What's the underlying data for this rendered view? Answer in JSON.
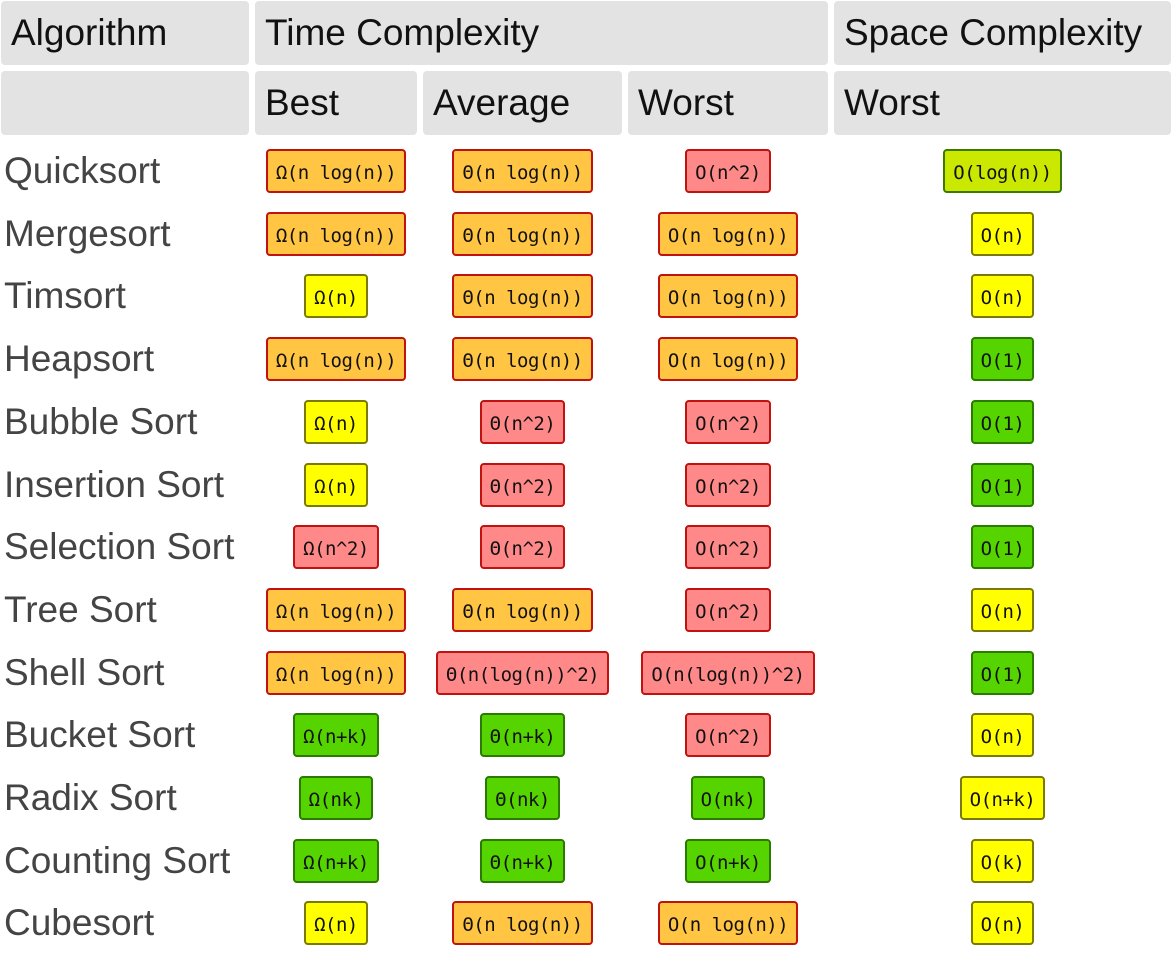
{
  "header": {
    "algorithm": "Algorithm",
    "time_complexity": "Time Complexity",
    "space_complexity": "Space Complexity",
    "best": "Best",
    "average": "Average",
    "worst": "Worst",
    "space_worst": "Worst"
  },
  "colors": {
    "orange": "#ffc543",
    "red": "#ff8989",
    "yellow": "#ffff00",
    "lime": "#cbe800",
    "green": "#55d400"
  },
  "rows": [
    {
      "name": "Quicksort",
      "best": {
        "v": "Ω(n log(n))",
        "c": "orange"
      },
      "average": {
        "v": "Θ(n log(n))",
        "c": "orange"
      },
      "worst": {
        "v": "O(n^2)",
        "c": "red"
      },
      "space": {
        "v": "O(log(n))",
        "c": "lime"
      }
    },
    {
      "name": "Mergesort",
      "best": {
        "v": "Ω(n log(n))",
        "c": "orange"
      },
      "average": {
        "v": "Θ(n log(n))",
        "c": "orange"
      },
      "worst": {
        "v": "O(n log(n))",
        "c": "orange"
      },
      "space": {
        "v": "O(n)",
        "c": "yellow"
      }
    },
    {
      "name": "Timsort",
      "best": {
        "v": "Ω(n)",
        "c": "yellow"
      },
      "average": {
        "v": "Θ(n log(n))",
        "c": "orange"
      },
      "worst": {
        "v": "O(n log(n))",
        "c": "orange"
      },
      "space": {
        "v": "O(n)",
        "c": "yellow"
      }
    },
    {
      "name": "Heapsort",
      "best": {
        "v": "Ω(n log(n))",
        "c": "orange"
      },
      "average": {
        "v": "Θ(n log(n))",
        "c": "orange"
      },
      "worst": {
        "v": "O(n log(n))",
        "c": "orange"
      },
      "space": {
        "v": "O(1)",
        "c": "green"
      }
    },
    {
      "name": "Bubble Sort",
      "best": {
        "v": "Ω(n)",
        "c": "yellow"
      },
      "average": {
        "v": "Θ(n^2)",
        "c": "red"
      },
      "worst": {
        "v": "O(n^2)",
        "c": "red"
      },
      "space": {
        "v": "O(1)",
        "c": "green"
      }
    },
    {
      "name": "Insertion Sort",
      "best": {
        "v": "Ω(n)",
        "c": "yellow"
      },
      "average": {
        "v": "Θ(n^2)",
        "c": "red"
      },
      "worst": {
        "v": "O(n^2)",
        "c": "red"
      },
      "space": {
        "v": "O(1)",
        "c": "green"
      }
    },
    {
      "name": "Selection Sort",
      "best": {
        "v": "Ω(n^2)",
        "c": "red"
      },
      "average": {
        "v": "Θ(n^2)",
        "c": "red"
      },
      "worst": {
        "v": "O(n^2)",
        "c": "red"
      },
      "space": {
        "v": "O(1)",
        "c": "green"
      }
    },
    {
      "name": "Tree Sort",
      "best": {
        "v": "Ω(n log(n))",
        "c": "orange"
      },
      "average": {
        "v": "Θ(n log(n))",
        "c": "orange"
      },
      "worst": {
        "v": "O(n^2)",
        "c": "red"
      },
      "space": {
        "v": "O(n)",
        "c": "yellow"
      }
    },
    {
      "name": "Shell Sort",
      "best": {
        "v": "Ω(n log(n))",
        "c": "orange"
      },
      "average": {
        "v": "Θ(n(log(n))^2)",
        "c": "red"
      },
      "worst": {
        "v": "O(n(log(n))^2)",
        "c": "red"
      },
      "space": {
        "v": "O(1)",
        "c": "green"
      }
    },
    {
      "name": "Bucket Sort",
      "best": {
        "v": "Ω(n+k)",
        "c": "green"
      },
      "average": {
        "v": "Θ(n+k)",
        "c": "green"
      },
      "worst": {
        "v": "O(n^2)",
        "c": "red"
      },
      "space": {
        "v": "O(n)",
        "c": "yellow"
      }
    },
    {
      "name": "Radix Sort",
      "best": {
        "v": "Ω(nk)",
        "c": "green"
      },
      "average": {
        "v": "Θ(nk)",
        "c": "green"
      },
      "worst": {
        "v": "O(nk)",
        "c": "green"
      },
      "space": {
        "v": "O(n+k)",
        "c": "yellow"
      }
    },
    {
      "name": "Counting Sort",
      "best": {
        "v": "Ω(n+k)",
        "c": "green"
      },
      "average": {
        "v": "Θ(n+k)",
        "c": "green"
      },
      "worst": {
        "v": "O(n+k)",
        "c": "green"
      },
      "space": {
        "v": "O(k)",
        "c": "yellow"
      }
    },
    {
      "name": "Cubesort",
      "best": {
        "v": "Ω(n)",
        "c": "yellow"
      },
      "average": {
        "v": "Θ(n log(n))",
        "c": "orange"
      },
      "worst": {
        "v": "O(n log(n))",
        "c": "orange"
      },
      "space": {
        "v": "O(n)",
        "c": "yellow"
      }
    }
  ]
}
